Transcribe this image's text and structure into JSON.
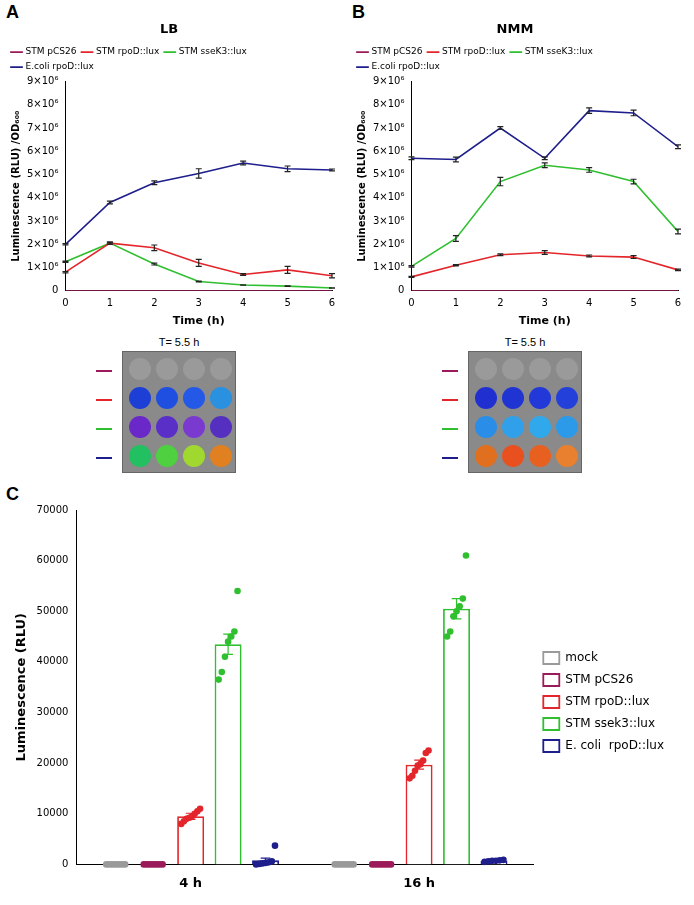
{
  "chart_data": [
    {
      "panel": "A",
      "type": "line",
      "title": "LB",
      "x_label": "Time (h)",
      "y_label": "Luminescence (RLU) /OD₆₀₀",
      "image_label": "T= 5.5 h",
      "x": [
        0,
        1,
        2,
        3,
        4,
        5,
        6
      ],
      "xlim": [
        0,
        6
      ],
      "xticks": [
        0,
        1,
        2,
        3,
        4,
        5,
        6
      ],
      "ylim": [
        0,
        9000000
      ],
      "yticks": [
        0,
        {
          "value": 1000000,
          "label": "1×10⁶"
        },
        {
          "value": 2000000,
          "label": "2×10⁶"
        },
        {
          "value": 3000000,
          "label": "3×10⁶"
        },
        {
          "value": 4000000,
          "label": "4×10⁶"
        },
        {
          "value": 5000000,
          "label": "5×10⁶"
        },
        {
          "value": 6000000,
          "label": "6×10⁶"
        },
        {
          "value": 7000000,
          "label": "7×10⁶"
        },
        {
          "value": 8000000,
          "label": "8×10⁶"
        },
        {
          "value": 9000000,
          "label": "9×10⁶"
        }
      ],
      "grid": false,
      "legend": "top",
      "series": [
        {
          "name": "STM pCS26",
          "color": "#9b1b5a",
          "values": [
            0,
            0,
            0,
            0,
            0,
            0,
            0
          ],
          "errors": [
            0,
            0,
            0,
            0,
            0,
            0,
            0
          ]
        },
        {
          "name": "STM rpoD::lux",
          "color": "#e3262b",
          "values": [
            800000,
            2050000,
            1850000,
            1200000,
            700000,
            900000,
            650000
          ],
          "errors": [
            30000,
            40000,
            120000,
            150000,
            40000,
            150000,
            90000
          ]
        },
        {
          "name": "STM sseK3::lux",
          "color": "#2fbf2f",
          "values": [
            1250000,
            2050000,
            1150000,
            400000,
            250000,
            200000,
            120000
          ],
          "errors": [
            30000,
            40000,
            40000,
            20000,
            10000,
            10000,
            10000
          ]
        },
        {
          "name": "E.coli rpoD::lux",
          "color": "#1e1e8c",
          "values": [
            2000000,
            3800000,
            4650000,
            5050000,
            5500000,
            5250000,
            5200000
          ],
          "errors": [
            30000,
            60000,
            80000,
            200000,
            80000,
            120000,
            40000
          ]
        }
      ]
    },
    {
      "panel": "B",
      "type": "line",
      "title": "NMM",
      "x_label": "Time (h)",
      "y_label": "Luminescence (RLU) /OD₆₀₀",
      "image_label": "T= 5.5 h",
      "x": [
        0,
        1,
        2,
        3,
        4,
        5,
        6
      ],
      "xlim": [
        0,
        6
      ],
      "xticks": [
        0,
        1,
        2,
        3,
        4,
        5,
        6
      ],
      "ylim": [
        0,
        9000000
      ],
      "yticks": [
        0,
        {
          "value": 1000000,
          "label": "1×10⁶"
        },
        {
          "value": 2000000,
          "label": "2×10⁶"
        },
        {
          "value": 3000000,
          "label": "3×10⁶"
        },
        {
          "value": 4000000,
          "label": "4×10⁶"
        },
        {
          "value": 5000000,
          "label": "5×10⁶"
        },
        {
          "value": 6000000,
          "label": "6×10⁶"
        },
        {
          "value": 7000000,
          "label": "7×10⁶"
        },
        {
          "value": 8000000,
          "label": "8×10⁶"
        },
        {
          "value": 9000000,
          "label": "9×10⁶"
        }
      ],
      "grid": false,
      "legend": "top",
      "series": [
        {
          "name": "STM pCS26",
          "color": "#9b1b5a",
          "values": [
            0,
            0,
            0,
            0,
            0,
            0,
            0
          ],
          "errors": [
            0,
            0,
            0,
            0,
            0,
            0,
            0
          ]
        },
        {
          "name": "STM rpoD::lux",
          "color": "#e3262b",
          "values": [
            600000,
            1100000,
            1550000,
            1650000,
            1500000,
            1450000,
            900000
          ],
          "errors": [
            20000,
            30000,
            40000,
            80000,
            40000,
            60000,
            30000
          ]
        },
        {
          "name": "STM sseK3::lux",
          "color": "#2fbf2f",
          "values": [
            1050000,
            2250000,
            4700000,
            5400000,
            5200000,
            4700000,
            2550000
          ],
          "errors": [
            30000,
            120000,
            180000,
            100000,
            100000,
            100000,
            100000
          ]
        },
        {
          "name": "E.coli rpoD::lux",
          "color": "#1e1e8c",
          "values": [
            5700000,
            5650000,
            7000000,
            5700000,
            7750000,
            7650000,
            6200000
          ],
          "errors": [
            60000,
            100000,
            60000,
            60000,
            120000,
            120000,
            80000
          ]
        }
      ]
    },
    {
      "panel": "C",
      "type": "bar",
      "y_label": "Luminescence (RLU)",
      "categories": [
        "4 h",
        "16 h"
      ],
      "ylim": [
        0,
        70000
      ],
      "yticks": [
        0,
        10000,
        20000,
        30000,
        40000,
        50000,
        60000,
        70000
      ],
      "grid": false,
      "legend": "right",
      "series": [
        {
          "name": "mock",
          "color": "#9a9a9a",
          "values": [
            0,
            0
          ],
          "errors": [
            0,
            0
          ],
          "points": [
            [
              0,
              0,
              0,
              0,
              0,
              0,
              0,
              0
            ],
            [
              0,
              0,
              0,
              0,
              0,
              0,
              0,
              0
            ]
          ]
        },
        {
          "name": "STM pCS26",
          "color": "#9b1b5a",
          "values": [
            0,
            0
          ],
          "errors": [
            0,
            0
          ],
          "points": [
            [
              0,
              0,
              0,
              0,
              0,
              0,
              0,
              0
            ],
            [
              0,
              0,
              0,
              0,
              0,
              0,
              0,
              0
            ]
          ]
        },
        {
          "name": "STM rpoD::lux",
          "color": "#e3262b",
          "values": [
            9500,
            19700
          ],
          "errors": [
            600,
            900
          ],
          "points": [
            [
              8000,
              8500,
              9000,
              9200,
              9500,
              10000,
              10500,
              11000
            ],
            [
              17000,
              17500,
              18500,
              19500,
              19800,
              20500,
              22000,
              22500
            ]
          ]
        },
        {
          "name": "STM ssek3::lux",
          "color": "#2fbf2f",
          "values": [
            43500,
            50500
          ],
          "errors": [
            2000,
            2000
          ],
          "points": [
            [
              36500,
              38000,
              41000,
              44000,
              45000,
              46000,
              54000
            ],
            [
              45000,
              46000,
              49000,
              50000,
              51000,
              52500,
              61000
            ]
          ]
        },
        {
          "name": "E. coli  rpoD::lux",
          "color": "#1e1e8c",
          "values": [
            800,
            700
          ],
          "errors": [
            450,
            100
          ],
          "points": [
            [
              0,
              100,
              200,
              300,
              400,
              600,
              3700
            ],
            [
              500,
              600,
              700,
              700,
              800,
              900
            ]
          ]
        }
      ]
    }
  ]
}
